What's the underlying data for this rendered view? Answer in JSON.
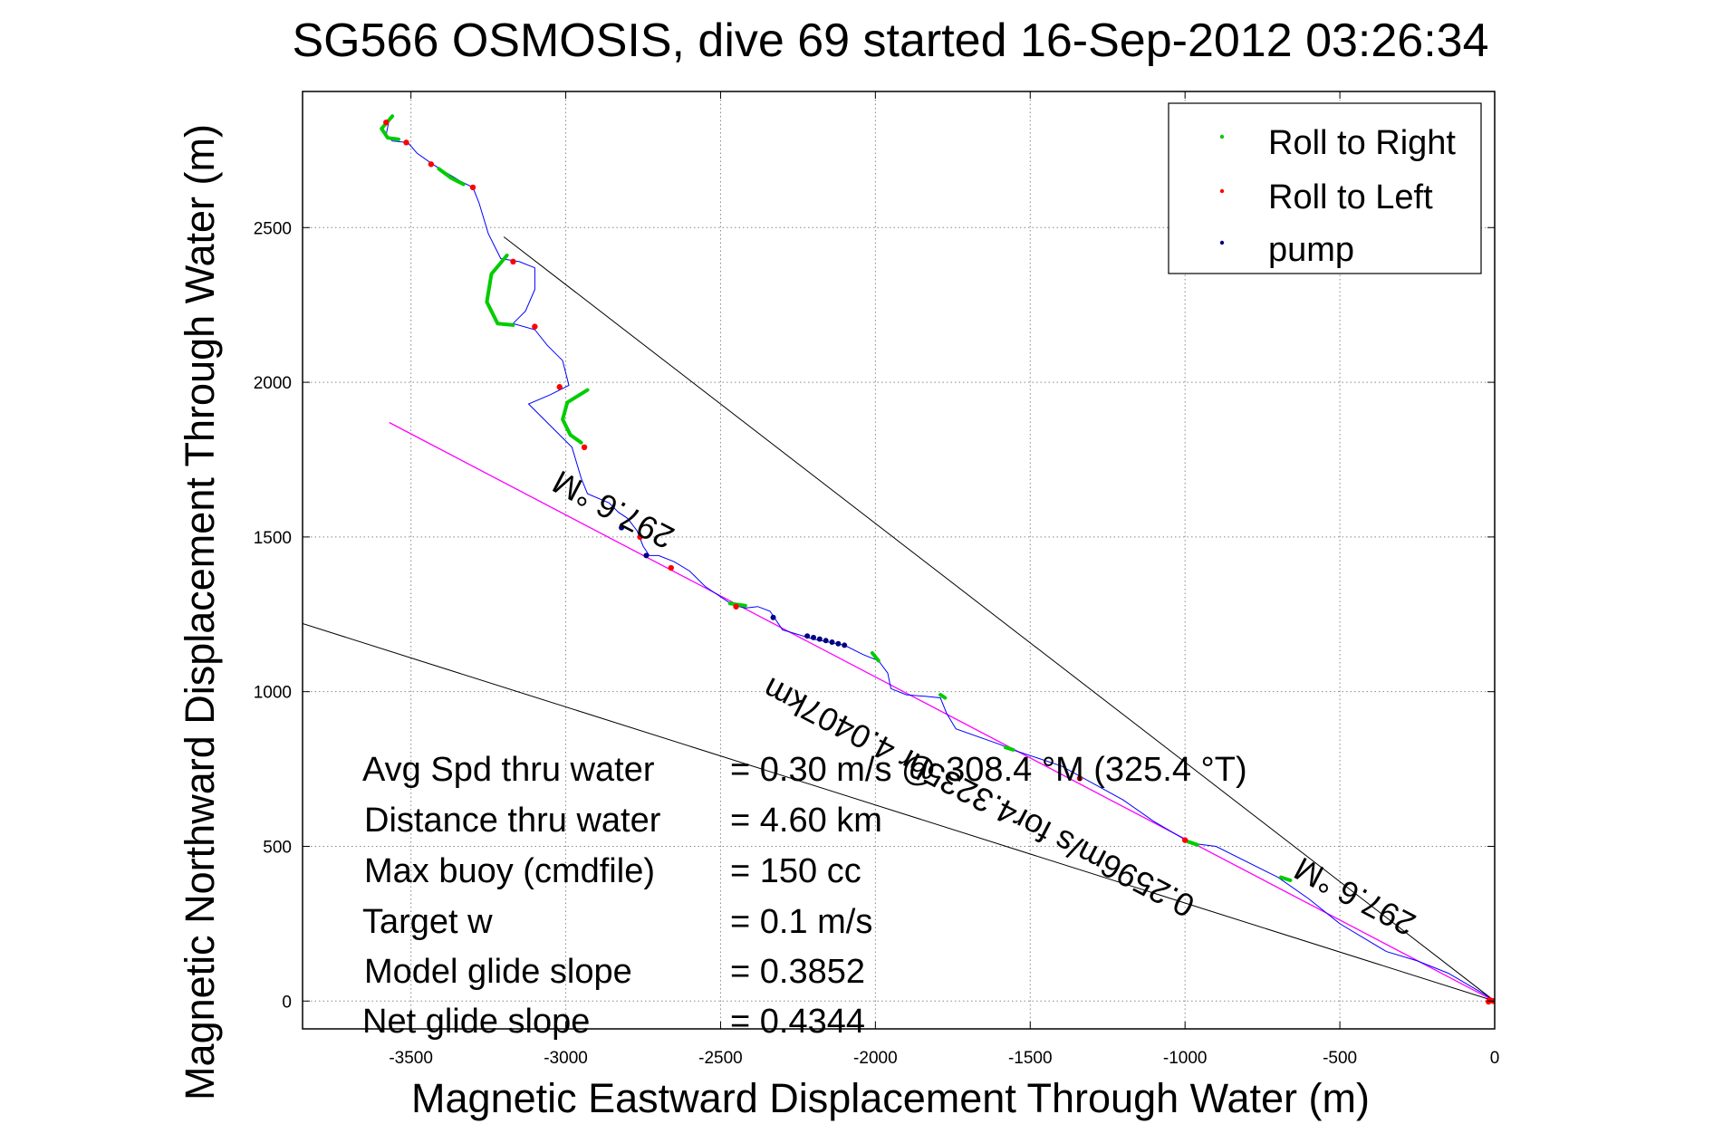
{
  "chart_data": {
    "type": "line",
    "title": "SG566 OSMOSIS, dive 69 started 16-Sep-2012 03:26:34",
    "xlabel": "Magnetic Eastward Displacement Through Water (m)",
    "ylabel": "Magnetic Northward Displacement Through Water (m)",
    "xlim": [
      -3850,
      0
    ],
    "ylim": [
      -90,
      2940
    ],
    "xticks": [
      -3500,
      -3000,
      -2500,
      -2000,
      -1500,
      -1000,
      -500,
      0
    ],
    "yticks": [
      0,
      500,
      1000,
      1500,
      2000,
      2500
    ],
    "xtick_labels": [
      "-3500",
      "-3000",
      "-2500",
      "-2000",
      "-1500",
      "-1000",
      "-500",
      "0"
    ],
    "ytick_labels": [
      "0",
      "500",
      "1000",
      "1500",
      "2000",
      "2500"
    ],
    "grid": true,
    "legend": {
      "placement": "top-right",
      "entries": [
        {
          "label": "Roll to Right",
          "color": "#00cc00"
        },
        {
          "label": "Roll to Left",
          "color": "#ff0000"
        },
        {
          "label": "pump",
          "color": "#000080"
        }
      ]
    },
    "track": {
      "name": "track",
      "color": "#0000ff",
      "points": [
        [
          -3570,
          2850
        ],
        [
          -3580,
          2800
        ],
        [
          -3560,
          2780
        ],
        [
          -3510,
          2775
        ],
        [
          -3480,
          2740
        ],
        [
          -3430,
          2705
        ],
        [
          -3390,
          2680
        ],
        [
          -3340,
          2650
        ],
        [
          -3300,
          2630
        ],
        [
          -3280,
          2580
        ],
        [
          -3250,
          2480
        ],
        [
          -3210,
          2400
        ],
        [
          -3150,
          2390
        ],
        [
          -3100,
          2370
        ],
        [
          -3100,
          2300
        ],
        [
          -3130,
          2230
        ],
        [
          -3170,
          2190
        ],
        [
          -3100,
          2170
        ],
        [
          -3060,
          2120
        ],
        [
          -3010,
          2070
        ],
        [
          -2990,
          1990
        ],
        [
          -3050,
          1960
        ],
        [
          -3120,
          1930
        ],
        [
          -3060,
          1870
        ],
        [
          -2980,
          1790
        ],
        [
          -2950,
          1690
        ],
        [
          -2930,
          1640
        ],
        [
          -2860,
          1610
        ],
        [
          -2830,
          1580
        ],
        [
          -2800,
          1560
        ],
        [
          -2770,
          1520
        ],
        [
          -2750,
          1470
        ],
        [
          -2730,
          1440
        ],
        [
          -2700,
          1440
        ],
        [
          -2650,
          1420
        ],
        [
          -2600,
          1390
        ],
        [
          -2550,
          1340
        ],
        [
          -2460,
          1280
        ],
        [
          -2420,
          1270
        ],
        [
          -2380,
          1275
        ],
        [
          -2340,
          1260
        ],
        [
          -2300,
          1200
        ],
        [
          -2200,
          1170
        ],
        [
          -2150,
          1160
        ],
        [
          -2100,
          1150
        ],
        [
          -2040,
          1120
        ],
        [
          -1990,
          1100
        ],
        [
          -1960,
          1060
        ],
        [
          -1950,
          1010
        ],
        [
          -1900,
          990
        ],
        [
          -1840,
          985
        ],
        [
          -1790,
          980
        ],
        [
          -1770,
          930
        ],
        [
          -1740,
          880
        ],
        [
          -1600,
          830
        ],
        [
          -1550,
          810
        ],
        [
          -1400,
          760
        ],
        [
          -1200,
          650
        ],
        [
          -1100,
          580
        ],
        [
          -980,
          510
        ],
        [
          -900,
          500
        ],
        [
          -700,
          400
        ],
        [
          -600,
          330
        ],
        [
          -500,
          250
        ],
        [
          -350,
          160
        ],
        [
          -250,
          130
        ],
        [
          -150,
          90
        ],
        [
          -30,
          20
        ],
        [
          0,
          0
        ]
      ]
    },
    "roll_to_right_arcs": [
      [
        [
          -3560,
          2860
        ],
        [
          -3595,
          2820
        ],
        [
          -3575,
          2790
        ],
        [
          -3540,
          2785
        ]
      ],
      [
        [
          -3410,
          2690
        ],
        [
          -3370,
          2660
        ],
        [
          -3330,
          2640
        ]
      ],
      [
        [
          -3190,
          2410
        ],
        [
          -3240,
          2350
        ],
        [
          -3255,
          2260
        ],
        [
          -3220,
          2190
        ],
        [
          -3170,
          2185
        ]
      ],
      [
        [
          -2930,
          1975
        ],
        [
          -2995,
          1935
        ],
        [
          -3010,
          1880
        ],
        [
          -2985,
          1830
        ],
        [
          -2950,
          1805
        ]
      ],
      [
        [
          -2470,
          1285
        ],
        [
          -2420,
          1278
        ]
      ],
      [
        [
          -2010,
          1125
        ],
        [
          -1990,
          1100
        ]
      ],
      [
        [
          -1790,
          990
        ],
        [
          -1775,
          980
        ]
      ],
      [
        [
          -1580,
          820
        ],
        [
          -1555,
          812
        ]
      ],
      [
        [
          -990,
          515
        ],
        [
          -960,
          505
        ]
      ],
      [
        [
          -690,
          400
        ],
        [
          -660,
          390
        ]
      ]
    ],
    "roll_to_left_points": [
      [
        -3580,
        2840
      ],
      [
        -3515,
        2775
      ],
      [
        -3435,
        2705
      ],
      [
        -3300,
        2630
      ],
      [
        -3170,
        2390
      ],
      [
        -3100,
        2180
      ],
      [
        -3020,
        1985
      ],
      [
        -2940,
        1790
      ],
      [
        -2760,
        1500
      ],
      [
        -2660,
        1400
      ],
      [
        -2450,
        1275
      ],
      [
        -1340,
        720
      ],
      [
        -1000,
        520
      ],
      [
        -20,
        -2
      ],
      [
        -5,
        0
      ],
      [
        -15,
        3
      ]
    ],
    "pump_points": [
      [
        -2820,
        1530
      ],
      [
        -2740,
        1440
      ],
      [
        -2330,
        1240
      ],
      [
        -2220,
        1180
      ],
      [
        -2200,
        1175
      ],
      [
        -2180,
        1170
      ],
      [
        -2160,
        1165
      ],
      [
        -2140,
        1160
      ],
      [
        -2120,
        1155
      ],
      [
        -2100,
        1150
      ]
    ],
    "reference_lines": [
      {
        "name": "upper bound",
        "color": "#000000",
        "points": [
          [
            -3200,
            2470
          ],
          [
            0,
            0
          ]
        ]
      },
      {
        "name": "lower bound",
        "color": "#000000",
        "points": [
          [
            -3850,
            1220
          ],
          [
            0,
            0
          ]
        ]
      },
      {
        "name": "net track",
        "color": "#ff00ff",
        "points": [
          [
            -3570,
            1870
          ],
          [
            0,
            0
          ]
        ]
      }
    ],
    "stats": [
      {
        "label": "Avg Spd thru water",
        "value": "=  0.30 m/s @ 308.4 °M (325.4 °T)"
      },
      {
        "label": "Distance thru water",
        "value": "=  4.60 km"
      },
      {
        "label": "Max buoy (cmdfile)",
        "value": "= 150 cc"
      },
      {
        "label": "Target w",
        "value": "= 0.1 m/s"
      },
      {
        "label": "Model glide slope",
        "value": "= 0.3852"
      },
      {
        "label": "Net glide slope",
        "value": "= 0.4344"
      }
    ],
    "annotations": [
      {
        "text": "297.6 °M",
        "x": -2830,
        "y": 1620,
        "angle_deg": 207.5
      },
      {
        "text": "297.6 °M",
        "x": -435,
        "y": 370,
        "angle_deg": 207.5
      },
      {
        "text": "0.2596m/s for4.3235hr 4.0407km",
        "x": -1650,
        "y": 690,
        "angle_deg": 207.5
      }
    ]
  }
}
